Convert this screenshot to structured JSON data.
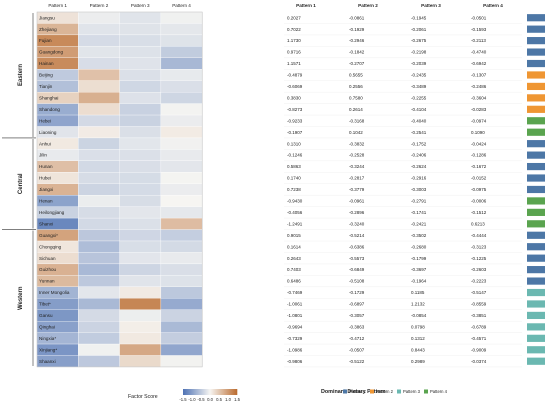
{
  "chart_data": {
    "type": "heatmap",
    "patterns": [
      "Pattern 1",
      "Pattern 2",
      "Pattern 3",
      "Pattern 4"
    ],
    "regions": [
      {
        "name": "Eastern",
        "provinces": [
          "Jiangsu",
          "Zhejiang",
          "Fujian",
          "Guangdong",
          "Hainan",
          "Beijing",
          "Tianjin",
          "Shanghai",
          "Shandong",
          "Hebei",
          "Liaoning"
        ]
      },
      {
        "name": "Central",
        "provinces": [
          "Anhui",
          "Jilin",
          "Hunan",
          "Hubei",
          "Jiangxi",
          "Henan",
          "Heilongjiang",
          "Shanxi"
        ]
      },
      {
        "name": "Western",
        "provinces": [
          "Guangxi*",
          "Chongqing",
          "Sichuan",
          "Guizhou",
          "Yunnan",
          "Inner Mongolia",
          "Tibet*",
          "Gansu",
          "Qinghai",
          "Ningxia*",
          "Xinjiang*",
          "Shaanxi"
        ]
      }
    ],
    "rows": [
      {
        "province": "Jiangsu",
        "values": [
          0.2027,
          -0.0861,
          -0.1945,
          -0.0501
        ],
        "display": [
          "0.2027",
          "-0.0861",
          "-0.1945",
          "-0.0501"
        ],
        "dominant": 1
      },
      {
        "province": "Zhejiang",
        "values": [
          0.7022,
          -0.1929,
          -0.2061,
          -0.1593
        ],
        "display": [
          "0.7022",
          "-0.1929",
          "-0.2061",
          "-0.1593"
        ],
        "dominant": 1
      },
      {
        "province": "Fujian",
        "values": [
          1.173,
          -0.2946,
          -0.2675,
          -0.2113
        ],
        "display": [
          "1.1730",
          "-0.2946",
          "-0.2675",
          "-0.2113"
        ],
        "dominant": 1
      },
      {
        "province": "Guangdong",
        "values": [
          0.9716,
          -0.1842,
          -0.2198,
          -0.474
        ],
        "display": [
          "0.9716",
          "-0.1842",
          "-0.2198",
          "-0.4740"
        ],
        "dominant": 1
      },
      {
        "province": "Hainan",
        "values": [
          1.1571,
          -0.2707,
          -0.2039,
          -0.6942
        ],
        "display": [
          "1.1571",
          "-0.2707",
          "-0.2039",
          "-0.6942"
        ],
        "dominant": 1
      },
      {
        "province": "Beijing",
        "values": [
          -0.4879,
          0.5655,
          -0.2435,
          -0.1307
        ],
        "display": [
          "-0.4879",
          "0.5655",
          "-0.2435",
          "-0.1307"
        ],
        "dominant": 2
      },
      {
        "province": "Tianjin",
        "values": [
          -0.6069,
          0.2556,
          -0.3489,
          -0.2486
        ],
        "display": [
          "-0.6069",
          "0.2556",
          "-0.3489",
          "-0.2486"
        ],
        "dominant": 2
      },
      {
        "province": "Shanghai",
        "values": [
          0.383,
          0.758,
          -0.2255,
          -0.3604
        ],
        "display": [
          "0.3830",
          "0.7580",
          "-0.2255",
          "-0.3604"
        ],
        "dominant": 2
      },
      {
        "province": "Shandong",
        "values": [
          -0.8273,
          0.2614,
          -0.4104,
          -0.0283
        ],
        "display": [
          "-0.8273",
          "0.2614",
          "-0.4104",
          "-0.0283"
        ],
        "dominant": 2
      },
      {
        "province": "Hebei",
        "values": [
          -0.9233,
          -0.3168,
          -0.404,
          -0.0974
        ],
        "display": [
          "-0.9233",
          "-0.3168",
          "-0.4040",
          "-0.0974"
        ],
        "dominant": 4
      },
      {
        "province": "Liaoning",
        "values": [
          -0.1907,
          0.1042,
          -0.2541,
          0.109
        ],
        "display": [
          "-0.1907",
          "0.1042",
          "-0.2541",
          "0.1090"
        ],
        "dominant": 4
      },
      {
        "province": "Anhui",
        "values": [
          0.131,
          -0.3832,
          -0.1752,
          -0.0424
        ],
        "display": [
          "0.1310",
          "-0.3832",
          "-0.1752",
          "-0.0424"
        ],
        "dominant": 1
      },
      {
        "province": "Jilin",
        "values": [
          -0.1246,
          -0.2528,
          -0.2406,
          -0.1286
        ],
        "display": [
          "-0.1246",
          "-0.2528",
          "-0.2406",
          "-0.1286"
        ],
        "dominant": 1
      },
      {
        "province": "Hunan",
        "values": [
          0.5863,
          -0.3244,
          -0.2624,
          -0.1672
        ],
        "display": [
          "0.5863",
          "-0.3244",
          "-0.2624",
          "-0.1672"
        ],
        "dominant": 1
      },
      {
        "province": "Hubei",
        "values": [
          0.174,
          -0.2817,
          -0.2916,
          -0.0152
        ],
        "display": [
          "0.1740",
          "-0.2817",
          "-0.2916",
          "-0.0152"
        ],
        "dominant": 1
      },
      {
        "province": "Jiangxi",
        "values": [
          0.7238,
          -0.3779,
          -0.3003,
          -0.0975
        ],
        "display": [
          "0.7238",
          "-0.3779",
          "-0.3003",
          "-0.0975"
        ],
        "dominant": 1
      },
      {
        "province": "Henan",
        "values": [
          -0.943,
          -0.0961,
          -0.2791,
          -0.0006
        ],
        "display": [
          "-0.9430",
          "-0.0961",
          "-0.2791",
          "-0.0006"
        ],
        "dominant": 4
      },
      {
        "province": "Heilongjiang",
        "values": [
          -0.4056,
          -0.2896,
          -0.1741,
          -0.1512
        ],
        "display": [
          "-0.4056",
          "-0.2896",
          "-0.1741",
          "-0.1512"
        ],
        "dominant": 4
      },
      {
        "province": "Shanxi",
        "values": [
          -1.2491,
          -0.324,
          -0.2421,
          0.6213
        ],
        "display": [
          "-1.2491",
          "-0.3240",
          "-0.2421",
          "0.6213"
        ],
        "dominant": 4
      },
      {
        "province": "Guangxi*",
        "values": [
          0.9015,
          -0.5214,
          -0.3502,
          -0.4444
        ],
        "display": [
          "0.9015",
          "-0.5214",
          "-0.3502",
          "-0.4444"
        ],
        "dominant": 1
      },
      {
        "province": "Chongqing",
        "values": [
          0.1614,
          -0.6386,
          -0.268,
          -0.3123
        ],
        "display": [
          "0.1614",
          "-0.6386",
          "-0.2680",
          "-0.3123"
        ],
        "dominant": 1
      },
      {
        "province": "Sichuan",
        "values": [
          0.2643,
          -0.5573,
          -0.1799,
          -0.1225
        ],
        "display": [
          "0.2643",
          "-0.5573",
          "-0.1799",
          "-0.1225"
        ],
        "dominant": 1
      },
      {
        "province": "Guizhou",
        "values": [
          0.7403,
          -0.6849,
          -0.3697,
          -0.2603
        ],
        "display": [
          "0.7403",
          "-0.6849",
          "-0.3697",
          "-0.2603"
        ],
        "dominant": 1
      },
      {
        "province": "Yunnan",
        "values": [
          0.6486,
          -0.5108,
          -0.1964,
          -0.2223
        ],
        "display": [
          "0.6486",
          "-0.5108",
          "-0.1964",
          "-0.2223"
        ],
        "dominant": 1
      },
      {
        "province": "Inner Mongolia",
        "values": [
          -0.7469,
          -0.1729,
          0.1185,
          -0.5147
        ],
        "display": [
          "-0.7469",
          "-0.1729",
          "0.1185",
          "-0.5147"
        ],
        "dominant": 3
      },
      {
        "province": "Tibet*",
        "values": [
          -1.0061,
          -0.6897,
          1.2132,
          -0.8559
        ],
        "display": [
          "-1.0061",
          "-0.6897",
          "1.2132",
          "-0.8559"
        ],
        "dominant": 3
      },
      {
        "province": "Gansu",
        "values": [
          -1.0801,
          -0.3057,
          -0.0854,
          -0.3851
        ],
        "display": [
          "-1.0801",
          "-0.3057",
          "-0.0854",
          "-0.3851"
        ],
        "dominant": 3
      },
      {
        "province": "Qinghai",
        "values": [
          -0.9694,
          -0.3863,
          0.0798,
          -0.6789
        ],
        "display": [
          "-0.9694",
          "-0.3863",
          "0.0798",
          "-0.6789"
        ],
        "dominant": 3
      },
      {
        "province": "Ningxia*",
        "values": [
          -0.7329,
          -0.4712,
          0.1312,
          -0.4571
        ],
        "display": [
          "-0.7329",
          "-0.4712",
          "0.1312",
          "-0.4571"
        ],
        "dominant": 3
      },
      {
        "province": "Xinjiang*",
        "values": [
          -1.0986,
          -0.0507,
          0.8443,
          -0.9009
        ],
        "display": [
          "-1.0986",
          "-0.0507",
          "0.8443",
          "-0.9009"
        ],
        "dominant": 3
      },
      {
        "province": "Shaanxi",
        "values": [
          -0.9806,
          -0.5122,
          0.2989,
          -0.0374
        ],
        "display": [
          "-0.9806",
          "-0.5122",
          "0.2989",
          "-0.0374"
        ],
        "dominant": 3
      }
    ],
    "color_scale": {
      "title": "Factor Score",
      "min": -1.5,
      "max": 1.5,
      "ticks": [
        "-1.5",
        "-1.0",
        "-0.5",
        "0.0",
        "0.5",
        "1.0",
        "1.5"
      ],
      "low_color": "#4e72b4",
      "mid_color": "#f6f5f2",
      "high_color": "#bb6c30"
    },
    "legend": {
      "title": "Dominant Dietary Pattern",
      "items": [
        {
          "id": 1,
          "label": "Pattern 1",
          "color": "#4d77a6"
        },
        {
          "id": 2,
          "label": "Pattern 2",
          "color": "#ef9633"
        },
        {
          "id": 3,
          "label": "Pattern 3",
          "color": "#6bb8b1"
        },
        {
          "id": 4,
          "label": "Pattern 4",
          "color": "#5aa44f"
        }
      ]
    }
  }
}
